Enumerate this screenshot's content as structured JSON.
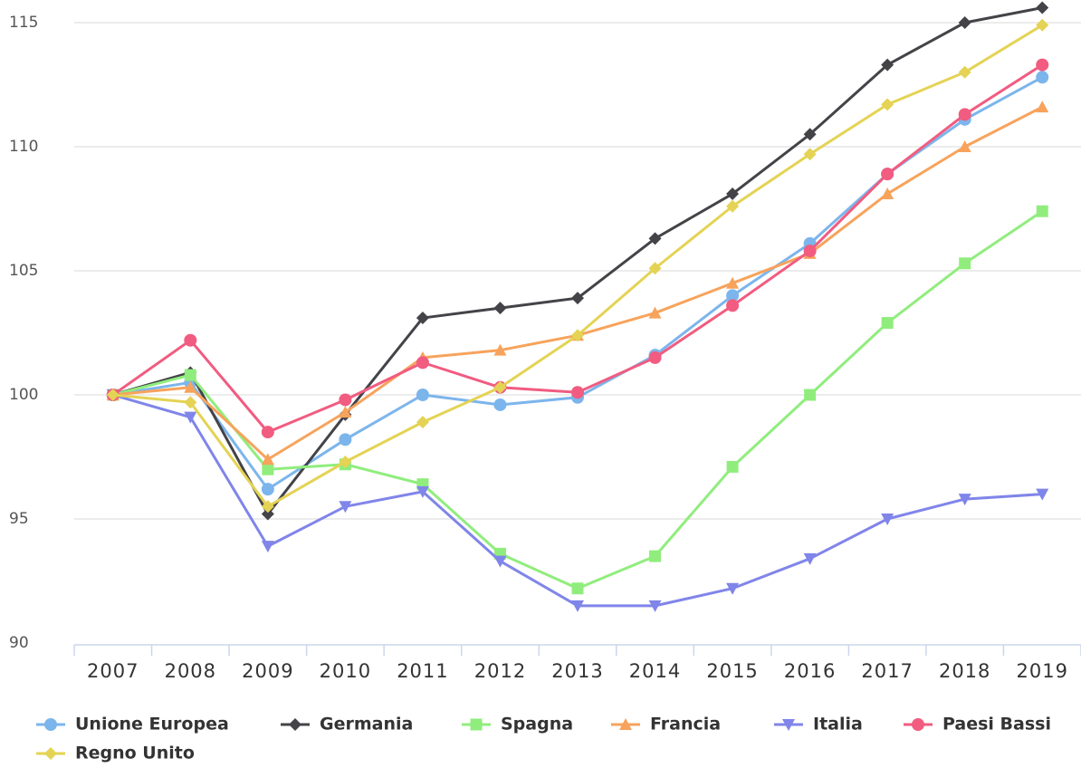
{
  "chart_data": {
    "type": "line",
    "categories": [
      "2007",
      "2008",
      "2009",
      "2010",
      "2011",
      "2012",
      "2013",
      "2014",
      "2015",
      "2016",
      "2017",
      "2018",
      "2019"
    ],
    "ylim": [
      90,
      115
    ],
    "yticks": [
      90,
      95,
      100,
      105,
      110,
      115
    ],
    "grid": true,
    "series": [
      {
        "name": "Unione Europea",
        "color": "#7cb5ec",
        "marker": "circle",
        "values": [
          100,
          100.5,
          96.2,
          98.2,
          100,
          99.6,
          99.9,
          101.6,
          104,
          106.1,
          108.9,
          111.1,
          112.8
        ]
      },
      {
        "name": "Germania",
        "color": "#434348",
        "marker": "diamond",
        "values": [
          100,
          100.9,
          95.2,
          99.2,
          103.1,
          103.5,
          103.9,
          106.3,
          108.1,
          110.5,
          113.3,
          115,
          115.6
        ]
      },
      {
        "name": "Spagna",
        "color": "#90ed7d",
        "marker": "square",
        "values": [
          100,
          100.8,
          97,
          97.2,
          96.4,
          93.6,
          92.2,
          93.5,
          97.1,
          100,
          102.9,
          105.3,
          107.4
        ]
      },
      {
        "name": "Francia",
        "color": "#f7a35c",
        "marker": "triangle",
        "values": [
          100,
          100.3,
          97.4,
          99.3,
          101.5,
          101.8,
          102.4,
          103.3,
          104.5,
          105.7,
          108.1,
          110,
          111.6
        ]
      },
      {
        "name": "Italia",
        "color": "#8085e9",
        "marker": "triangle-down",
        "values": [
          100,
          99.1,
          93.9,
          95.5,
          96.1,
          93.3,
          91.5,
          91.5,
          92.2,
          93.4,
          95,
          95.8,
          96
        ]
      },
      {
        "name": "Paesi Bassi",
        "color": "#f15c80",
        "marker": "circle",
        "values": [
          100,
          102.2,
          98.5,
          99.8,
          101.3,
          100.3,
          100.1,
          101.5,
          103.6,
          105.8,
          108.9,
          111.3,
          113.3
        ]
      },
      {
        "name": "Regno Unito",
        "color": "#e4d354",
        "marker": "diamond",
        "values": [
          100,
          99.7,
          95.5,
          97.3,
          98.9,
          100.3,
          102.4,
          105.1,
          107.6,
          109.7,
          111.7,
          113,
          114.9
        ]
      }
    ]
  }
}
